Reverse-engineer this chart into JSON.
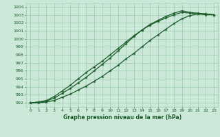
{
  "title": "Graphe pression niveau de la mer (hPa)",
  "bg_color": "#cce8d8",
  "grid_color": "#99ccb0",
  "line_color": "#1a5c28",
  "xlim": [
    -0.5,
    23.5
  ],
  "ylim": [
    991.5,
    1004.5
  ],
  "yticks": [
    992,
    993,
    994,
    995,
    996,
    997,
    998,
    999,
    1000,
    1001,
    1002,
    1003,
    1004
  ],
  "xticks": [
    0,
    1,
    2,
    3,
    4,
    5,
    6,
    7,
    8,
    9,
    10,
    11,
    12,
    13,
    14,
    15,
    16,
    17,
    18,
    19,
    20,
    21,
    22,
    23
  ],
  "line1": [
    992.0,
    992.1,
    992.2,
    992.6,
    993.2,
    993.8,
    994.5,
    995.2,
    996.0,
    996.8,
    997.6,
    998.5,
    999.4,
    1000.3,
    1001.1,
    1001.8,
    1002.3,
    1002.8,
    1003.2,
    1003.5,
    1003.3,
    1003.2,
    1003.1,
    1003.0
  ],
  "line2": [
    992.0,
    992.1,
    992.3,
    992.8,
    993.5,
    994.2,
    995.0,
    995.8,
    996.5,
    997.2,
    998.0,
    998.8,
    999.6,
    1000.4,
    1001.1,
    1001.7,
    1002.2,
    1002.6,
    1003.0,
    1003.3,
    1003.2,
    1003.1,
    1003.0,
    1003.0
  ],
  "line3": [
    992.0,
    992.0,
    992.1,
    992.3,
    992.7,
    993.1,
    993.6,
    994.1,
    994.7,
    995.3,
    996.0,
    996.7,
    997.5,
    998.2,
    999.0,
    999.8,
    1000.5,
    1001.2,
    1001.9,
    1002.5,
    1002.9,
    1003.1,
    1003.1,
    1003.0
  ]
}
